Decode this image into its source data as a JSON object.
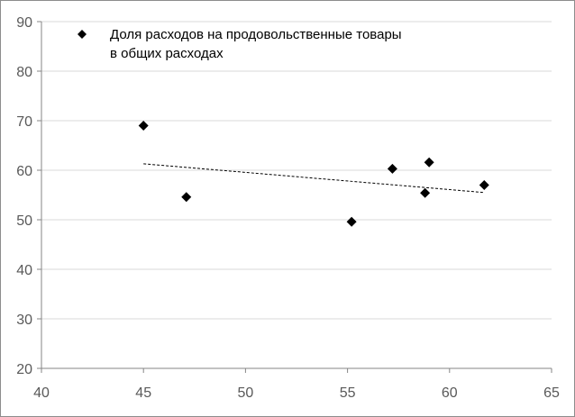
{
  "chart_data": {
    "type": "scatter",
    "title": "",
    "xlabel": "",
    "ylabel": "",
    "xlim": [
      40,
      65
    ],
    "ylim": [
      20,
      90
    ],
    "xticks": [
      40,
      45,
      50,
      55,
      60,
      65
    ],
    "yticks": [
      20,
      30,
      40,
      50,
      60,
      70,
      80,
      90
    ],
    "grid": {
      "horizontal": true,
      "vertical": false
    },
    "legend": {
      "position": "top-left",
      "lines": [
        "Доля расходов на продовольственные товары",
        "в общих расходах"
      ]
    },
    "series": [
      {
        "name": "Доля расходов на продовольственные товары в общих расходах",
        "marker": "diamond",
        "color": "#000000",
        "points": [
          {
            "x": 45.0,
            "y": 69.0
          },
          {
            "x": 47.1,
            "y": 54.6
          },
          {
            "x": 55.2,
            "y": 49.6
          },
          {
            "x": 57.2,
            "y": 60.3
          },
          {
            "x": 58.8,
            "y": 55.4
          },
          {
            "x": 59.0,
            "y": 61.6
          },
          {
            "x": 61.7,
            "y": 57.0
          }
        ]
      }
    ],
    "trendline": {
      "type": "linear",
      "style": "dotted",
      "x_start": 45.0,
      "y_start": 61.3,
      "x_end": 61.7,
      "y_end": 55.5
    },
    "colors": {
      "gridline": "#d9d9d9",
      "axis": "#868686",
      "tick_text": "#595959",
      "marker": "#000000"
    }
  }
}
